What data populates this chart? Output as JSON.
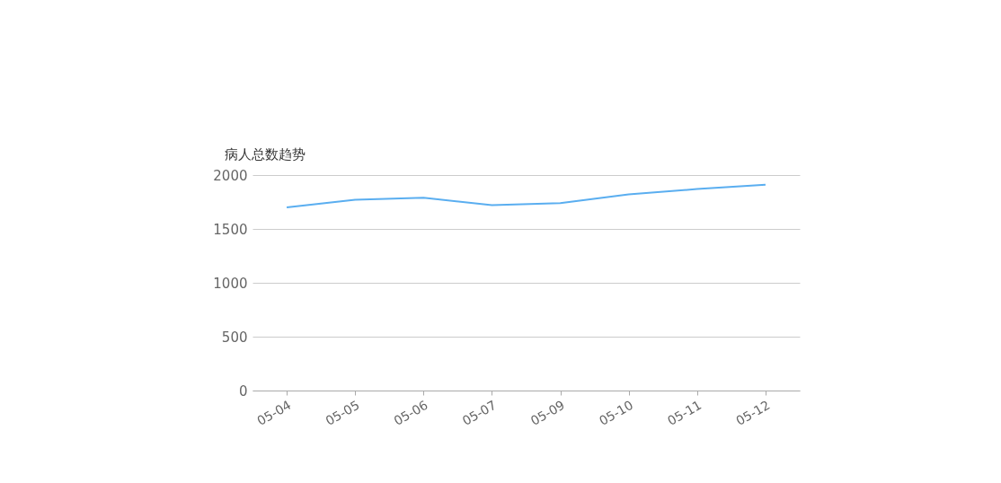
{
  "chart_data": {
    "type": "line",
    "title": "病人总数趋势",
    "categories": [
      "05-04",
      "05-05",
      "05-06",
      "05-07",
      "05-09",
      "05-10",
      "05-11",
      "05-12"
    ],
    "series": [
      {
        "color": "#5aaef0",
        "values": [
          1700,
          1770,
          1790,
          1720,
          1740,
          1820,
          1870,
          1910
        ]
      }
    ],
    "ylim": [
      0,
      2000
    ],
    "yticks": [
      0,
      500,
      1000,
      1500,
      2000
    ],
    "grid": "y",
    "legend": false,
    "marker": "none",
    "line_style": "solid"
  }
}
